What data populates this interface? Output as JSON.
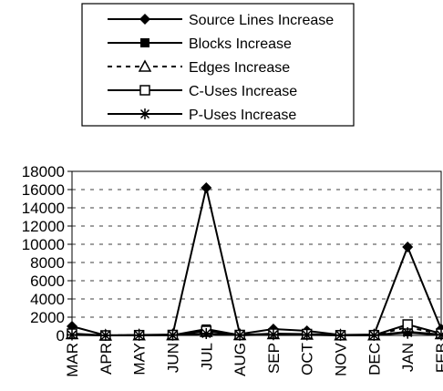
{
  "chart_data": {
    "type": "line",
    "title": "",
    "xlabel": "",
    "ylabel": "",
    "categories": [
      "MAR",
      "APR",
      "MAY",
      "JUN",
      "JUL",
      "AUG",
      "SEP",
      "OCT",
      "NOV",
      "DEC",
      "JAN",
      "FEB"
    ],
    "ylim": [
      0,
      18000
    ],
    "yticks": [
      0,
      2000,
      4000,
      6000,
      8000,
      10000,
      12000,
      14000,
      16000,
      18000
    ],
    "grid": "horizontal-dashed",
    "legend_position": "top",
    "series": [
      {
        "name": "Source Lines Increase",
        "marker": "diamond",
        "line": "solid",
        "values": [
          1000,
          0,
          50,
          100,
          16200,
          150,
          700,
          500,
          50,
          100,
          9700,
          700
        ]
      },
      {
        "name": "Blocks Increase",
        "marker": "square-filled",
        "line": "solid",
        "values": [
          100,
          0,
          20,
          30,
          700,
          30,
          100,
          80,
          10,
          20,
          400,
          100
        ]
      },
      {
        "name": "Edges Increase",
        "marker": "triangle-open",
        "line": "dashed",
        "values": [
          150,
          0,
          30,
          40,
          400,
          50,
          150,
          100,
          20,
          30,
          900,
          150
        ]
      },
      {
        "name": "C-Uses Increase",
        "marker": "square-open",
        "line": "solid",
        "values": [
          200,
          0,
          30,
          50,
          500,
          50,
          200,
          150,
          20,
          30,
          1200,
          200
        ]
      },
      {
        "name": "P-Uses Increase",
        "marker": "asterisk",
        "line": "solid",
        "values": [
          50,
          0,
          10,
          20,
          200,
          20,
          80,
          50,
          10,
          10,
          300,
          50
        ]
      }
    ]
  }
}
